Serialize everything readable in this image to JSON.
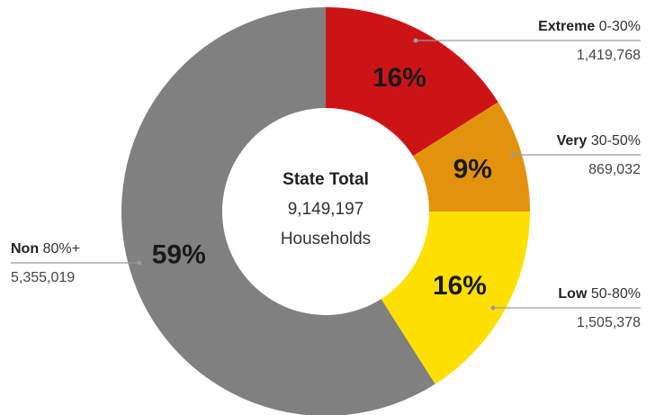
{
  "chart_data": {
    "type": "donut",
    "names": [
      "Extreme",
      "Very",
      "Low",
      "Non"
    ],
    "ranges": [
      "0-30%",
      "30-50%",
      "50-80%",
      "80%+"
    ],
    "values": [
      16,
      9,
      16,
      59
    ],
    "value_labels": [
      "16%",
      "9%",
      "16%",
      "59%"
    ],
    "counts": [
      1419768,
      869032,
      1505378,
      5355019
    ],
    "colors": [
      "#cc1417",
      "#e3920e",
      "#fde000",
      "#808080"
    ],
    "center_title": "State Total",
    "center_total": 9149197,
    "center_unit": "Households"
  }
}
